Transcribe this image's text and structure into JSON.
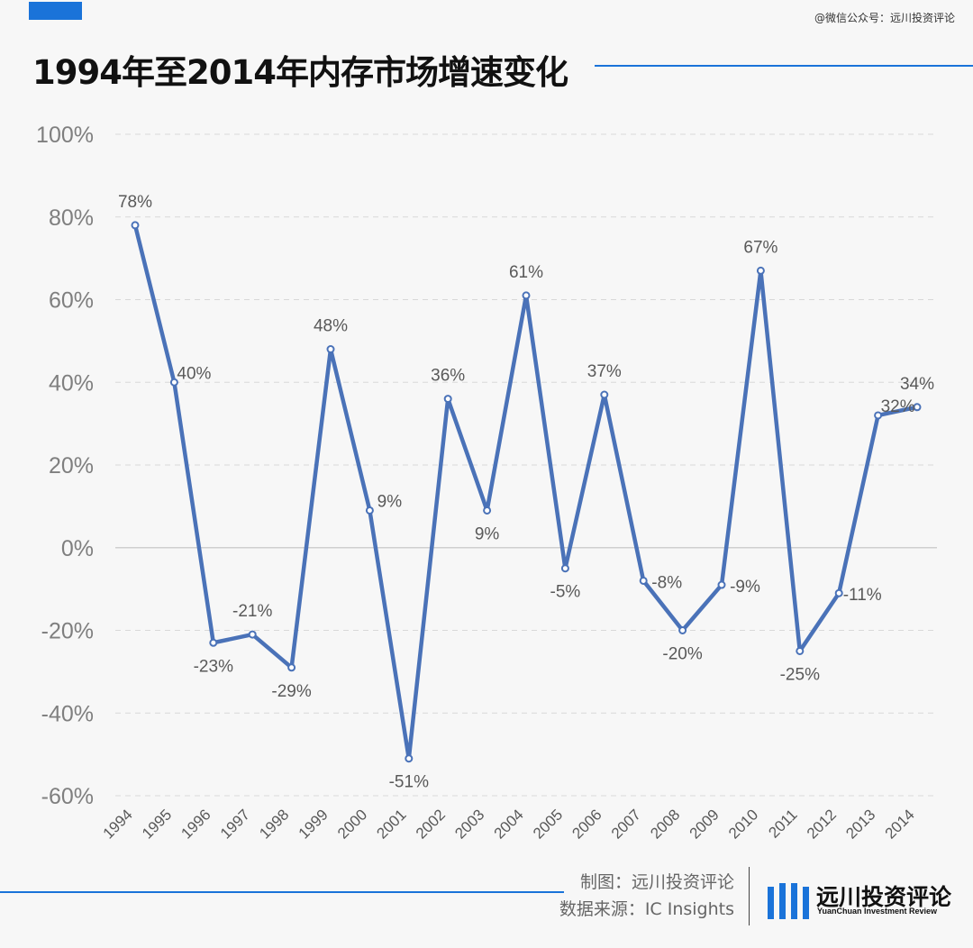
{
  "header": {
    "watermark": "@微信公众号：远川投资评论"
  },
  "colors": {
    "accent": "#1a73d9",
    "series": "#4a72b8",
    "grid": "#d8d8d8",
    "text": "#595959"
  },
  "chart_data": {
    "type": "line",
    "title": "1994年至2014年内存市场增速变化",
    "categories": [
      "1994",
      "1995",
      "1996",
      "1997",
      "1998",
      "1999",
      "2000",
      "2001",
      "2002",
      "2003",
      "2004",
      "2005",
      "2006",
      "2007",
      "2008",
      "2009",
      "2010",
      "2011",
      "2012",
      "2013",
      "2014"
    ],
    "series": [
      {
        "values": [
          78,
          40,
          -23,
          -21,
          -29,
          48,
          9,
          -51,
          36,
          9,
          61,
          -5,
          37,
          -8,
          -20,
          -9,
          67,
          -25,
          -11,
          32,
          34
        ]
      }
    ],
    "data_labels": [
      "78%",
      "40%",
      "-23%",
      "-21%",
      "-29%",
      "48%",
      "9%",
      "-51%",
      "36%",
      "9%",
      "61%",
      "-5%",
      "37%",
      "-8%",
      "-20%",
      "-9%",
      "67%",
      "-25%",
      "-11%",
      "32%",
      "34%"
    ],
    "ylim": [
      -60,
      100
    ],
    "yticks": [
      100,
      80,
      60,
      40,
      20,
      0,
      -20,
      -40,
      -60
    ],
    "ytick_labels": [
      "100%",
      "80%",
      "60%",
      "40%",
      "20%",
      "0%",
      "-20%",
      "-40%",
      "-60%"
    ],
    "grid": true,
    "legend": "none",
    "xlabel": "",
    "ylabel": ""
  },
  "footer": {
    "credit_line1": "制图：远川投资评论",
    "credit_line2": "数据来源：IC Insights",
    "brand_name": "远川投资评论",
    "brand_english": "YuanChuan Investment Review"
  }
}
